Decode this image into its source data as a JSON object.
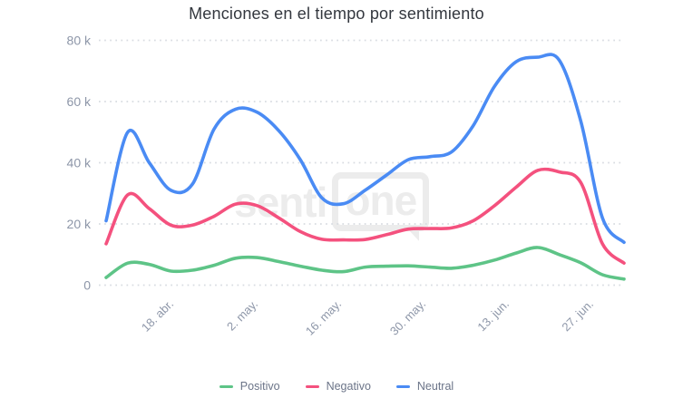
{
  "watermark": {
    "part1": "senti",
    "part2": "one"
  },
  "chart_data": {
    "type": "line",
    "title": "Menciones en el tiempo por sentimiento",
    "xlabel": "",
    "ylabel": "",
    "y_tick_labels": [
      "80 k",
      "60 k",
      "40 k",
      "20 k",
      "0"
    ],
    "ylim": [
      0,
      80000
    ],
    "x_tick_labels": [
      "18. abr.",
      "2. may.",
      "16. may.",
      "30. may.",
      "13. jun.",
      "27. jun."
    ],
    "grid": "dotted horizontal lines",
    "legend_position": "bottom center",
    "x_approx_dates": [
      "9 abr",
      "12 abr",
      "16 abr",
      "19 abr",
      "23 abr",
      "26 abr",
      "30 abr",
      "3 may",
      "7 may",
      "10 may",
      "14 may",
      "17 may",
      "21 may",
      "24 may",
      "28 may",
      "31 may",
      "4 jun",
      "7 jun",
      "11 jun",
      "14 jun",
      "18 jun",
      "21 jun",
      "25 jun",
      "28 jun",
      "2 jul"
    ],
    "series": [
      {
        "name": "Positivo",
        "color": "#5ec487",
        "values": [
          2500,
          7200,
          6800,
          4600,
          4900,
          6500,
          8800,
          9000,
          7700,
          6200,
          4900,
          4400,
          5900,
          6200,
          6300,
          5900,
          5500,
          6500,
          8200,
          10500,
          12300,
          10000,
          7300,
          3400,
          2000
        ]
      },
      {
        "name": "Negativo",
        "color": "#f4517e",
        "values": [
          13500,
          29500,
          25000,
          19600,
          19600,
          22500,
          26500,
          26000,
          22000,
          17500,
          15000,
          14800,
          14900,
          16500,
          18300,
          18500,
          18700,
          21000,
          26000,
          32000,
          37500,
          37000,
          33500,
          13500,
          7200
        ]
      },
      {
        "name": "Neutral",
        "color": "#4a8bf4",
        "values": [
          21000,
          50000,
          40000,
          31000,
          33000,
          51000,
          57500,
          56500,
          50500,
          41000,
          28500,
          26600,
          31000,
          36000,
          41000,
          42000,
          43500,
          52000,
          65000,
          73000,
          74500,
          73500,
          53500,
          22000,
          14000
        ]
      }
    ]
  }
}
